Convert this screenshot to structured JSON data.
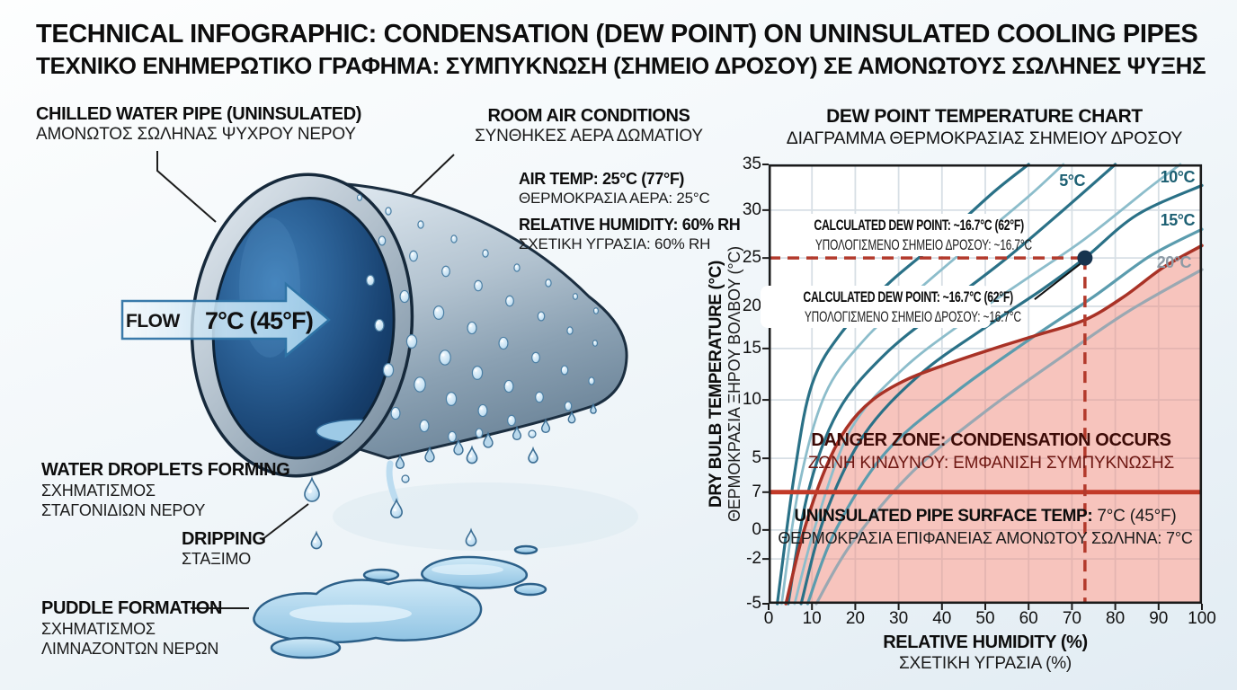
{
  "header": {
    "title": "TECHNICAL INFOGRAPHIC: CONDENSATION (DEW POINT) ON UNINSULATED COOLING PIPES",
    "title_el": "ΤΕΧΝΙΚΟ ΕΝΗΜΕΡΩΤΙΚΟ ΓΡΑΦΗΜΑ: ΣΥΜΠΥΚΝΩΣΗ (ΣΗΜΕΙΟ ΔΡΟΣΟΥ) ΣΕ ΑΜΟΝΩΤΟΥΣ ΣΩΛΗΝΕΣ ΨΥΞΗΣ"
  },
  "illustration": {
    "pipe_label": "CHILLED WATER PIPE (UNINSULATED)",
    "pipe_label_el": "ΑΜΟΝΩΤΟΣ ΣΩΛΗΝΑΣ ΨΥΧΡΟΥ ΝΕΡΟΥ",
    "flow": {
      "label": "FLOW",
      "temp": "7°C (45°F)"
    },
    "room": {
      "heading": "ROOM AIR CONDITIONS",
      "heading_el": "ΣΥΝΘΗΚΕΣ ΑΕΡΑ ΔΩΜΑΤΙΟΥ",
      "air_temp": "AIR TEMP: 25°C (77°F)",
      "air_temp_el": "ΘΕΡΜΟΚΡΑΣΙΑ ΑΕΡΑ: 25°C",
      "humidity": "RELATIVE HUMIDITY: 60% RH",
      "humidity_el": "ΣΧΕΤΙΚΗ ΥΓΡΑΣΙΑ: 60% RH"
    },
    "droplets_label": "WATER DROPLETS FORMING",
    "droplets_label_el": [
      "ΣΧΗΜΑΤΙΣΜΟΣ",
      "ΣΤΑΓΟΝΙΔΙΩΝ ΝΕΡΟΥ"
    ],
    "dripping_label": "DRIPPING",
    "dripping_label_el": "ΣΤΑΞΙΜΟ",
    "puddle_label": "PUDDLE FORMATION",
    "puddle_label_el": [
      "ΣΧΗΜΑΤΙΣΜΟΣ",
      "ΛΙΜΝΑΖΟΝΤΩΝ ΝΕΡΩΝ"
    ]
  },
  "chart_data": {
    "type": "line",
    "title": "DEW POINT TEMPERATURE CHART",
    "title_el": "ΔΙΑΓΡΑΜΜΑ ΘΕΡΜΟΚΡΑΣΙΑΣ ΣΗΜΕΙΟΥ ΔΡΟΣΟΥ",
    "xlabel": "RELATIVE HUMIDITY (%)",
    "xlabel_el": "ΣΧΕΤΙΚΗ ΥΓΡΑΣΙΑ (%)",
    "ylabel": "DRY BULB TEMPERATURE (°C)",
    "ylabel_el": "ΘΕΡΜΟΚΡΑΣΙΑ ΞΗΡΟΥ ΒΟΛΒΟΥ (°C)",
    "xlim": [
      0,
      100
    ],
    "grid": true,
    "legend": "none",
    "x_ticks": [
      "0",
      "10",
      "20",
      "30",
      "40",
      "50",
      "60",
      "70",
      "80",
      "90",
      "100"
    ],
    "y_ticks": [
      "35",
      "30",
      "25",
      "20",
      "15",
      "10",
      "5",
      "7",
      "0",
      "-2",
      "-5"
    ],
    "danger_fill_color": "#ef8d80",
    "series": [
      {
        "name": "dew-point-curve-a",
        "color": "#2a7187",
        "width": 3.2,
        "points": [
          [
            2,
            -5
          ],
          [
            6,
            4
          ],
          [
            10,
            11.5
          ],
          [
            17,
            17
          ],
          [
            28,
            22.5
          ],
          [
            40,
            27
          ],
          [
            52,
            32
          ],
          [
            60,
            35
          ]
        ]
      },
      {
        "name": "dew-point-curve-b",
        "color": "#8cbdcb",
        "width": 2.8,
        "points": [
          [
            3,
            -5
          ],
          [
            7,
            3
          ],
          [
            13,
            10.5
          ],
          [
            22,
            16
          ],
          [
            34,
            21.5
          ],
          [
            47,
            26.5
          ],
          [
            60,
            31.5
          ],
          [
            68,
            35
          ]
        ]
      },
      {
        "name": "dew-point-5c",
        "label": "5°C",
        "label_color": "#1d6073",
        "color": "#2a7187",
        "width": 3.2,
        "points": [
          [
            4.5,
            -5
          ],
          [
            9,
            2.5
          ],
          [
            16,
            9
          ],
          [
            27,
            14.5
          ],
          [
            42,
            20.5
          ],
          [
            55,
            25
          ],
          [
            68,
            30
          ],
          [
            80,
            35
          ]
        ]
      },
      {
        "name": "dew-point-curve-c",
        "color": "#8cbdcb",
        "width": 2.8,
        "points": [
          [
            6,
            -5
          ],
          [
            11,
            0.5
          ],
          [
            19,
            7.5
          ],
          [
            31,
            13
          ],
          [
            46,
            18.5
          ],
          [
            60,
            23
          ],
          [
            73,
            27
          ],
          [
            88,
            32.5
          ],
          [
            95,
            35
          ]
        ]
      },
      {
        "name": "dew-point-10c",
        "label": "10°C",
        "label_color": "#1d6073",
        "color": "#2a7187",
        "width": 3.2,
        "points": [
          [
            7.5,
            -5
          ],
          [
            13,
            1
          ],
          [
            22,
            7
          ],
          [
            35,
            12.5
          ],
          [
            50,
            17.5
          ],
          [
            63,
            21.7
          ],
          [
            73,
            25
          ],
          [
            85,
            29.5
          ],
          [
            100,
            32.7
          ]
        ]
      },
      {
        "name": "dew-point-15c",
        "label": "15°C",
        "label_color": "#1d6073",
        "color": "#5b9cae",
        "width": 3.2,
        "points": [
          [
            9,
            -5
          ],
          [
            15.5,
            0
          ],
          [
            27,
            5.5
          ],
          [
            43,
            10.7
          ],
          [
            60,
            16
          ],
          [
            75,
            21
          ],
          [
            88,
            25.2
          ],
          [
            100,
            28
          ]
        ]
      },
      {
        "name": "dew-point-20c",
        "label": "20°C",
        "label_color": "#8d9aa5",
        "color": "#9aa8b2",
        "width": 3.2,
        "points": [
          [
            11,
            -5
          ],
          [
            19,
            -1
          ],
          [
            33,
            4
          ],
          [
            50,
            9
          ],
          [
            68,
            14.3
          ],
          [
            83,
            19.4
          ],
          [
            100,
            23.8
          ]
        ]
      },
      {
        "name": "condensation-boundary",
        "color": "#a93226",
        "width": 3.5,
        "fill_below": true,
        "points": [
          [
            4,
            -5
          ],
          [
            8,
            -0.2
          ],
          [
            13,
            4.2
          ],
          [
            18,
            7.6
          ],
          [
            24,
            10
          ],
          [
            32,
            12
          ],
          [
            42,
            13.6
          ],
          [
            52,
            15
          ],
          [
            62,
            16.6
          ],
          [
            73,
            18.4
          ],
          [
            82,
            21
          ],
          [
            91,
            24
          ],
          [
            100,
            26.3
          ]
        ]
      }
    ],
    "marker": {
      "x": 73,
      "y": 25,
      "color": "#17344f"
    },
    "guides": {
      "dew_point_line": 25,
      "humidity_line": 73,
      "color": "#b33a2c"
    },
    "pipe_surface_line": {
      "value": 7,
      "color": "#c23a28"
    },
    "annotations": {
      "dew_point_boxes": [
        {
          "text": "CALCULATED DEW POINT: ~16.7°C (62°F)",
          "text_el": "ΥΠΟΛΟΓΙΣΜΕΝΟ ΣΗΜΕΙΟ ΔΡΟΣΟΥ: ~16.7°C"
        },
        {
          "text": "CALCULATED DEW POINT: ~16.7°C (62°F)",
          "text_el": "ΥΠΟΛΟΓΙΣΜΕΝΟ ΣΗΜΕΙΟ ΔΡΟΣΟΥ: ~16.7°C"
        }
      ],
      "danger": {
        "text": "DANGER ZONE: CONDENSATION OCCURS",
        "text_el": "ΖΩΝΗ ΚΙΝΔΥΝΟΥ: ΕΜΦΑΝΙΣΗ ΣΥΜΠΥΚΝΩΣΗΣ",
        "color": "#3d0b07",
        "color_el": "#6e1712"
      },
      "pipe_surface": {
        "text_bold": "UNINSULATED PIPE SURFACE TEMP:",
        "text_value": " 7°C (45°F)",
        "text_el": "ΘΕΡΜΟΚΡΑΣΙΑ ΕΠΙΦΑΝΕΙΑΣ ΑΜΟΝΩΤΟΥ ΣΩΛΗΝΑ: 7°C"
      }
    }
  }
}
